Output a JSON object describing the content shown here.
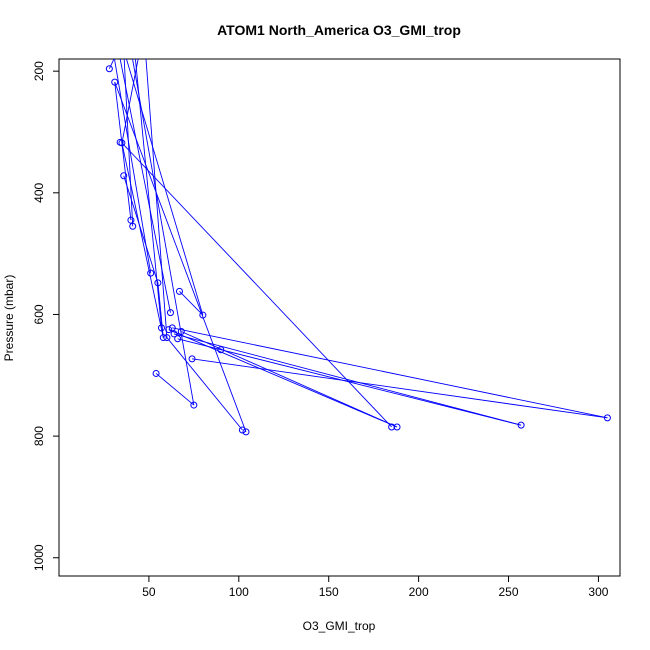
{
  "chart_data": {
    "type": "scatter",
    "title": "ATOM1 North_America O3_GMI_trop",
    "xlabel": "O3_GMI_trop",
    "ylabel": "Pressure (mbar)",
    "xlim": [
      0,
      312
    ],
    "ylim": [
      1030,
      180
    ],
    "y_reversed": true,
    "x_ticks": [
      50,
      100,
      150,
      200,
      250,
      300
    ],
    "y_ticks": [
      200,
      400,
      600,
      800,
      1000
    ],
    "color": "#0000ff",
    "grid": false,
    "markers": "open-circle",
    "points": [
      [
        38,
        165
      ],
      [
        28,
        196
      ],
      [
        40,
        445
      ],
      [
        34,
        317
      ],
      [
        31,
        218
      ],
      [
        36,
        172
      ],
      [
        36,
        372
      ],
      [
        35,
        318
      ],
      [
        41,
        455
      ],
      [
        51,
        532
      ],
      [
        55,
        548
      ],
      [
        62,
        597
      ],
      [
        67,
        562
      ],
      [
        80,
        601
      ],
      [
        57,
        622
      ],
      [
        58,
        638
      ],
      [
        63,
        622
      ],
      [
        60,
        638
      ],
      [
        64,
        632
      ],
      [
        68,
        628
      ],
      [
        305,
        770
      ],
      [
        90,
        658
      ],
      [
        257,
        782
      ],
      [
        66,
        640
      ],
      [
        61,
        625
      ],
      [
        74,
        673
      ],
      [
        54,
        697
      ],
      [
        185,
        785
      ],
      [
        102,
        790
      ],
      [
        188,
        785
      ],
      [
        104,
        793
      ],
      [
        75,
        749
      ]
    ],
    "line_segments": [
      [
        [
          28,
          196
        ],
        [
          33,
          165
        ]
      ],
      [
        [
          31,
          218
        ],
        [
          40,
          445
        ]
      ],
      [
        [
          35,
          318
        ],
        [
          45,
          165
        ]
      ],
      [
        [
          36,
          372
        ],
        [
          55,
          548
        ]
      ],
      [
        [
          41,
          455
        ],
        [
          36,
          165
        ]
      ],
      [
        [
          51,
          532
        ],
        [
          30,
          165
        ]
      ],
      [
        [
          55,
          548
        ],
        [
          58,
          638
        ]
      ],
      [
        [
          62,
          597
        ],
        [
          33,
          165
        ]
      ],
      [
        [
          67,
          562
        ],
        [
          80,
          601
        ]
      ],
      [
        [
          80,
          601
        ],
        [
          36,
          165
        ]
      ],
      [
        [
          57,
          622
        ],
        [
          42,
          165
        ]
      ],
      [
        [
          58,
          638
        ],
        [
          35,
          318
        ]
      ],
      [
        [
          63,
          622
        ],
        [
          305,
          770
        ]
      ],
      [
        [
          64,
          632
        ],
        [
          257,
          782
        ]
      ],
      [
        [
          66,
          640
        ],
        [
          257,
          782
        ]
      ],
      [
        [
          60,
          638
        ],
        [
          48,
          165
        ]
      ],
      [
        [
          74,
          673
        ],
        [
          305,
          770
        ]
      ],
      [
        [
          35,
          318
        ],
        [
          185,
          785
        ]
      ],
      [
        [
          54,
          697
        ],
        [
          75,
          749
        ]
      ],
      [
        [
          75,
          749
        ],
        [
          40,
          165
        ]
      ],
      [
        [
          104,
          793
        ],
        [
          31,
          218
        ]
      ],
      [
        [
          102,
          790
        ],
        [
          60,
          638
        ]
      ],
      [
        [
          188,
          785
        ],
        [
          68,
          628
        ]
      ],
      [
        [
          61,
          625
        ],
        [
          188,
          785
        ]
      ]
    ]
  }
}
